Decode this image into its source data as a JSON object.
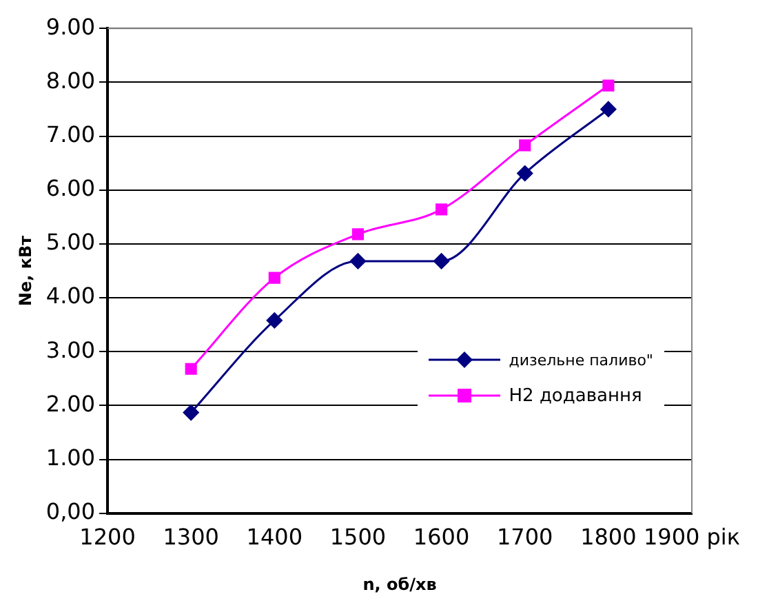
{
  "chart_data": {
    "type": "line",
    "xlabel": "n, об/хв",
    "ylabel": "Ne, кВт",
    "x": [
      1300,
      1400,
      1500,
      1600,
      1700,
      1800
    ],
    "series": [
      {
        "name": "дизельне паливо\"",
        "color": "#000080",
        "marker": "diamond",
        "values": [
          1.87,
          3.58,
          4.68,
          4.68,
          6.31,
          7.5
        ]
      },
      {
        "name": "H2 додавання",
        "color": "#ff00ff",
        "marker": "square",
        "values": [
          2.68,
          4.37,
          5.18,
          5.64,
          6.83,
          7.94
        ]
      }
    ],
    "xlim": [
      1200,
      1900
    ],
    "xticks": [
      1200,
      1300,
      1400,
      1500,
      1600,
      1700,
      1800,
      {
        "value": 1900,
        "label": "1900 рік"
      }
    ],
    "ylim": [
      0,
      9
    ],
    "yticks": [
      {
        "value": 0,
        "label": "0,00"
      },
      {
        "value": 1,
        "label": "1.00"
      },
      {
        "value": 2,
        "label": "2.00"
      },
      {
        "value": 3,
        "label": "3.00"
      },
      {
        "value": 4,
        "label": "4.00"
      },
      {
        "value": 5,
        "label": "5.00"
      },
      {
        "value": 6,
        "label": "6.00"
      },
      {
        "value": 7,
        "label": "7.00"
      },
      {
        "value": 8,
        "label": "8.00"
      },
      {
        "value": 9,
        "label": "9.00"
      }
    ],
    "grid": "y",
    "legend": "right"
  }
}
